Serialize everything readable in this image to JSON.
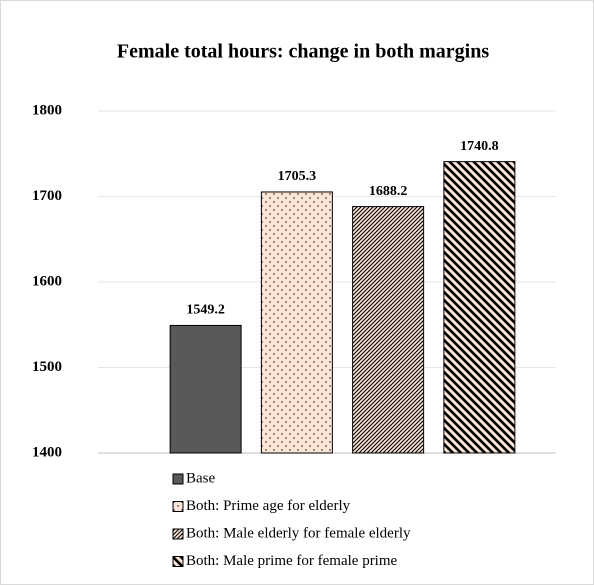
{
  "chart_data": {
    "type": "bar",
    "title": "Female total hours: change in both margins",
    "categories": [
      null
    ],
    "series": [
      {
        "name": "Base",
        "color": "#595959",
        "pattern": "solid",
        "values": [
          1549.2
        ]
      },
      {
        "name": "Both: Prime age for elderly",
        "color": "#fce4d6",
        "pattern": "dots",
        "values": [
          1705.3
        ]
      },
      {
        "name": "Both: Male elderly for female elderly",
        "color": "#fce4d6",
        "pattern": "crosshatch",
        "values": [
          1688.2
        ]
      },
      {
        "name": "Both: Male prime for female prime",
        "color": "#fce4d6",
        "pattern": "diagonal",
        "values": [
          1740.8
        ]
      }
    ],
    "ylim": [
      1400,
      1800
    ],
    "yticks": [
      1400,
      1500,
      1600,
      1700,
      1800
    ],
    "grid": true,
    "legend": "bottom"
  }
}
